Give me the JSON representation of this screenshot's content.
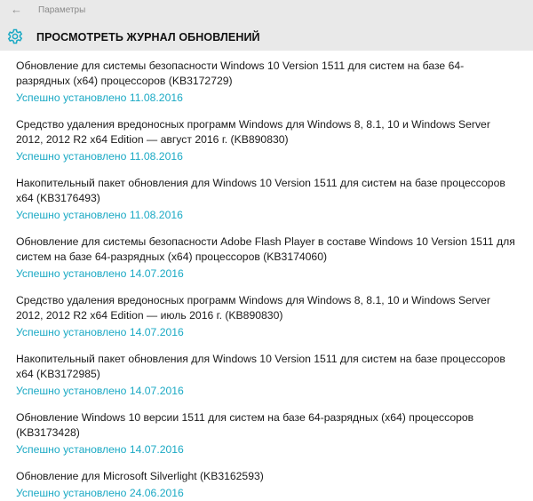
{
  "header": {
    "back_icon": "back-arrow-icon",
    "breadcrumb": "Параметры",
    "title_icon": "gear-icon",
    "title": "ПРОСМОТРЕТЬ ЖУРНАЛ ОБНОВЛЕНИЙ",
    "accent_color": "#1aa9c4"
  },
  "updates": [
    {
      "name": "Обновление для системы безопасности Windows 10 Version 1511 для систем на базе 64-разрядных (x64) процессоров (KB3172729)",
      "status": "Успешно установлено 11.08.2016"
    },
    {
      "name": "Средство удаления вредоносных программ Windows для Windows 8, 8.1, 10 и Windows Server 2012, 2012 R2 x64 Edition — август 2016 г. (KB890830)",
      "status": "Успешно установлено 11.08.2016"
    },
    {
      "name": "Накопительный пакет обновления для Windows 10 Version 1511 для систем на базе процессоров x64 (KB3176493)",
      "status": "Успешно установлено 11.08.2016"
    },
    {
      "name": "Обновление для системы безопасности Adobe Flash Player в составе Windows 10 Version 1511 для систем на базе 64-разрядных (x64) процессоров (KB3174060)",
      "status": "Успешно установлено 14.07.2016"
    },
    {
      "name": "Средство удаления вредоносных программ Windows для Windows 8, 8.1, 10 и Windows Server 2012, 2012 R2 x64 Edition — июль 2016 г. (KB890830)",
      "status": "Успешно установлено 14.07.2016"
    },
    {
      "name": "Накопительный пакет обновления для Windows 10 Version 1511 для систем на базе процессоров x64 (KB3172985)",
      "status": "Успешно установлено 14.07.2016"
    },
    {
      "name": "Обновление Windows 10 версии 1511 для систем на базе 64-разрядных (x64) процессоров (KB3173428)",
      "status": "Успешно установлено 14.07.2016"
    },
    {
      "name": "Обновление для Microsoft Silverlight (KB3162593)",
      "status": "Успешно установлено 24.06.2016"
    }
  ]
}
